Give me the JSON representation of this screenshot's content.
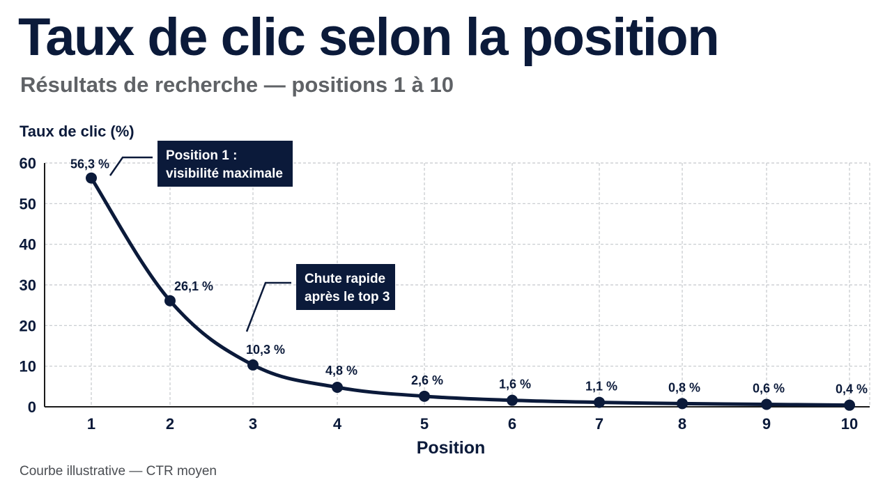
{
  "header": {
    "title": "Taux de clic selon la position",
    "subtitle": "Résultats de recherche — positions 1 à 10"
  },
  "footer": {
    "note": "Courbe illustrative — CTR moyen"
  },
  "chart_data": {
    "type": "line",
    "title": "Taux de clic selon la position",
    "subtitle": "Résultats de recherche — positions 1 à 10",
    "xlabel": "Position",
    "ylabel": "Taux de clic (%)",
    "x": [
      1,
      2,
      3,
      4,
      5,
      6,
      7,
      8,
      9,
      10
    ],
    "xlim": [
      1,
      10
    ],
    "ylim": [
      0,
      60
    ],
    "yticks": [
      0,
      10,
      20,
      30,
      40,
      50,
      60
    ],
    "grid": true,
    "series": [
      {
        "values": [
          56.3,
          26.1,
          10.3,
          4.8,
          2.6,
          1.6,
          1.1,
          0.8,
          0.6,
          0.4
        ],
        "labels": [
          "56,3 %",
          "26,1 %",
          "10,3 %",
          "4,8 %",
          "2,6 %",
          "1,6 %",
          "1,1 %",
          "0,8 %",
          "0,6 %",
          "0,4 %"
        ]
      }
    ],
    "annotations": [
      {
        "lines": [
          "Position 1 :",
          "visibilité maximale"
        ],
        "x": 1,
        "y": 56.3
      },
      {
        "lines": [
          "Chute rapide",
          "après le top 3"
        ],
        "x": 3,
        "y": 10.3
      }
    ],
    "colors": {
      "line": "#0b1a3a",
      "annotation_bg": "#0b1a3a",
      "annotation_text": "#ffffff",
      "grid": "#c4c7cc"
    }
  }
}
